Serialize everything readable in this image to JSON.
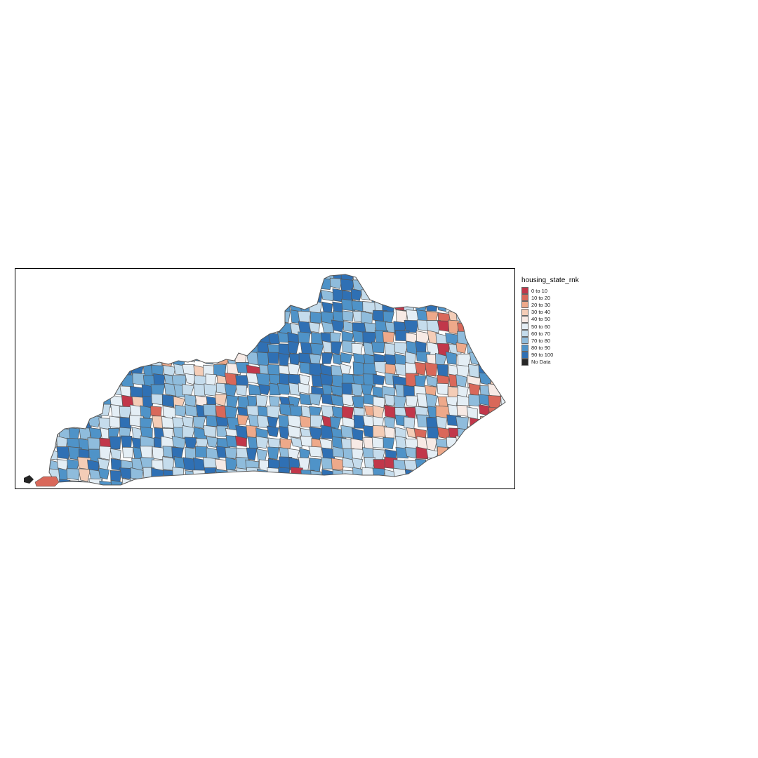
{
  "map": {
    "legend_title": "housing_state_rnk",
    "legend_items": [
      {
        "label": "0 to 10",
        "color": "#c1374a"
      },
      {
        "label": "10 to 20",
        "color": "#d9685a"
      },
      {
        "label": "20 to 30",
        "color": "#eea98a"
      },
      {
        "label": "30 to 40",
        "color": "#f4cdb7"
      },
      {
        "label": "40 to 50",
        "color": "#f7eae5"
      },
      {
        "label": "50 to 60",
        "color": "#e4eef5"
      },
      {
        "label": "60 to 70",
        "color": "#c5dcec"
      },
      {
        "label": "70 to 80",
        "color": "#8fbcdc"
      },
      {
        "label": "80 to 90",
        "color": "#4f93c8"
      },
      {
        "label": "90 to 100",
        "color": "#2f70b4"
      },
      {
        "label": "No Data",
        "color": "#262626"
      }
    ],
    "border_color": "#555555"
  }
}
